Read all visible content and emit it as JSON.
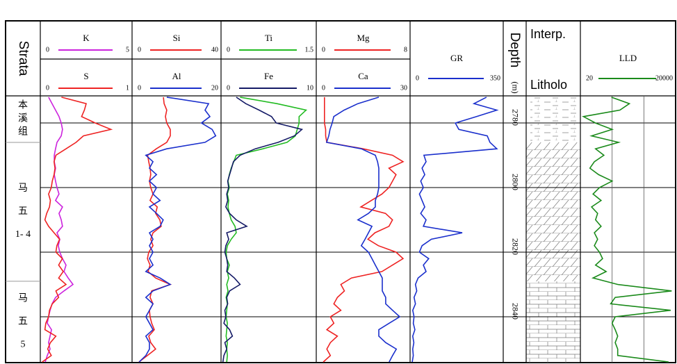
{
  "chart_data": {
    "type": "well-log",
    "strata_label": "Strata",
    "depth_label": "Depth",
    "depth_unit": "(m)",
    "litho_label": [
      "Interp.",
      "Litholo"
    ],
    "ylim": [
      2771.6,
      2854.2
    ],
    "yticks": [
      2780,
      2800,
      2820,
      2840
    ],
    "depth": [
      2772,
      2774,
      2776,
      2778,
      2780,
      2782,
      2784,
      2786,
      2788,
      2790,
      2792,
      2794,
      2796,
      2798,
      2800,
      2802,
      2804,
      2806,
      2808,
      2810,
      2812,
      2814,
      2816,
      2818,
      2820,
      2822,
      2824,
      2826,
      2828,
      2830,
      2832,
      2834,
      2836,
      2838,
      2840,
      2842,
      2844,
      2846,
      2848,
      2850,
      2852,
      2854
    ],
    "strata": [
      {
        "name": [
          "本",
          "溪",
          "组"
        ],
        "top": 2771.6,
        "base": 2786
      },
      {
        "name": [
          "马",
          "五",
          "1- 4"
        ],
        "top": 2786,
        "base": 2829
      },
      {
        "name": [
          "马",
          "五",
          "5"
        ],
        "top": 2829,
        "base": 2854.2
      }
    ],
    "tracks": [
      {
        "log": false,
        "series": [
          {
            "name": "K",
            "color": "#cc22dd",
            "xlim": [
              0,
              5
            ],
            "values": [
              0.45,
              0.64,
              0.83,
              1.02,
              1.14,
              1.21,
              1.14,
              0.91,
              0.83,
              0.76,
              0.76,
              0.83,
              0.76,
              0.83,
              0.91,
              1.02,
              0.83,
              1.21,
              1.02,
              1.14,
              1.21,
              0.91,
              1.06,
              0.98,
              1.06,
              1.21,
              1.4,
              1.29,
              1.52,
              1.78,
              1.29,
              0.83,
              0.64,
              0.53,
              0.45,
              0.38,
              0.61,
              0.53,
              0.45,
              0.53,
              0.38,
              0.27
            ]
          },
          {
            "name": "S",
            "color": "#ee2222",
            "xlim": [
              0,
              1
            ],
            "values": [
              0.23,
              0.5,
              0.48,
              0.45,
              0.6,
              0.77,
              0.47,
              0.39,
              0.28,
              0.17,
              0.15,
              0.16,
              0.15,
              0.13,
              0.12,
              0.09,
              0.11,
              0.1,
              0.07,
              0.05,
              0.09,
              0.15,
              0.21,
              0.18,
              0.17,
              0.24,
              0.2,
              0.25,
              0.2,
              0.28,
              0.17,
              0.2,
              0.13,
              0.1,
              0.09,
              0.06,
              0.05,
              0.17,
              0.11,
              0.08,
              0.12,
              0.02
            ]
          }
        ]
      },
      {
        "log": false,
        "series": [
          {
            "name": "Si",
            "color": "#ee2222",
            "xlim": [
              0,
              40
            ],
            "values": [
              14.1,
              14.4,
              15.6,
              15.0,
              15.6,
              17.2,
              17.2,
              15.6,
              10.9,
              7.0,
              7.5,
              8.1,
              8.4,
              7.8,
              8.4,
              9.4,
              8.1,
              11.3,
              10.6,
              12.5,
              13.1,
              9.4,
              8.4,
              9.4,
              7.5,
              6.9,
              8.1,
              7.2,
              10.6,
              17.2,
              8.8,
              8.1,
              9.4,
              7.8,
              8.1,
              8.8,
              10.0,
              7.5,
              8.4,
              10.6,
              6.9,
              3.1
            ]
          },
          {
            "name": "Al",
            "color": "#1a2fcc",
            "xlim": [
              0,
              20
            ],
            "values": [
              7.8,
              17.2,
              16.4,
              17.5,
              15.6,
              18.0,
              18.8,
              16.4,
              7.8,
              3.1,
              4.7,
              3.9,
              5.5,
              3.9,
              5.5,
              4.7,
              6.3,
              3.9,
              5.5,
              7.0,
              6.3,
              3.9,
              4.7,
              3.9,
              4.7,
              3.9,
              4.7,
              3.1,
              6.3,
              8.6,
              4.7,
              3.1,
              4.7,
              3.9,
              3.1,
              3.9,
              4.7,
              3.1,
              3.9,
              3.9,
              3.1,
              1.6
            ]
          }
        ]
      },
      {
        "log": false,
        "series": [
          {
            "name": "Ti",
            "color": "#22bb22",
            "xlim": [
              0,
              1.5
            ],
            "values": [
              0.3,
              0.88,
              1.34,
              1.23,
              1.23,
              1.2,
              1.17,
              1.04,
              0.66,
              0.24,
              0.2,
              0.16,
              0.13,
              0.11,
              0.13,
              0.1,
              0.12,
              0.11,
              0.13,
              0.16,
              0.22,
              0.24,
              0.16,
              0.1,
              0.08,
              0.09,
              0.13,
              0.1,
              0.12,
              0.09,
              0.11,
              0.08,
              0.1,
              0.09,
              0.08,
              0.1,
              0.09,
              0.08,
              0.1,
              0.09,
              0.1,
              0.09
            ]
          },
          {
            "name": "Fe",
            "color": "#141a66",
            "xlim": [
              0,
              10
            ],
            "values": [
              1.6,
              2.6,
              4.0,
              5.3,
              5.8,
              8.5,
              7.7,
              6.0,
              3.6,
              2.0,
              1.3,
              1.1,
              0.9,
              0.7,
              0.8,
              0.6,
              0.7,
              0.5,
              0.9,
              1.6,
              2.7,
              0.6,
              0.8,
              0.5,
              0.4,
              0.6,
              0.7,
              0.6,
              1.4,
              2.0,
              0.9,
              0.6,
              0.7,
              0.4,
              0.5,
              0.3,
              0.9,
              1.2,
              0.4,
              0.6,
              0.3,
              0.2
            ]
          }
        ]
      },
      {
        "log": false,
        "series": [
          {
            "name": "Mg",
            "color": "#ee2222",
            "xlim": [
              0,
              8
            ],
            "values": [
              0.7,
              0.7,
              0.7,
              0.7,
              0.7,
              0.8,
              0.8,
              0.9,
              4.0,
              6.5,
              7.4,
              6.2,
              6.8,
              6.5,
              6.2,
              5.6,
              4.7,
              3.8,
              5.9,
              6.5,
              6.2,
              5.0,
              4.4,
              5.3,
              6.8,
              7.4,
              6.5,
              5.6,
              3.0,
              2.1,
              2.4,
              1.8,
              1.5,
              2.1,
              1.2,
              1.5,
              0.9,
              1.8,
              1.2,
              0.9,
              1.2,
              0.6
            ]
          },
          {
            "name": "Ca",
            "color": "#1a2fcc",
            "xlim": [
              0,
              30
            ],
            "values": [
              20.0,
              13.3,
              8.9,
              5.6,
              5.1,
              4.4,
              4.0,
              3.3,
              14.4,
              18.9,
              19.6,
              20.0,
              20.0,
              20.0,
              20.0,
              19.6,
              18.9,
              18.9,
              16.7,
              13.3,
              17.8,
              16.7,
              15.6,
              14.4,
              16.7,
              17.8,
              18.9,
              20.0,
              21.1,
              21.1,
              21.1,
              22.2,
              22.2,
              24.4,
              26.7,
              23.3,
              20.0,
              20.0,
              22.2,
              25.6,
              24.4,
              23.3
            ]
          }
        ]
      },
      {
        "log": false,
        "series": [
          {
            "name": "GR",
            "color": "#1a2fcc",
            "xlim": [
              0,
              350
            ],
            "values": [
              287,
              240,
              326,
              250,
              170,
              183,
              290,
              300,
              326,
              52,
              60,
              45,
              55,
              40,
              50,
              35,
              45,
              55,
              40,
              60,
              50,
              196,
              80,
              45,
              35,
              70,
              50,
              60,
              30,
              20,
              25,
              15,
              20,
              10,
              15,
              12,
              18,
              10,
              14,
              10,
              12,
              8
            ]
          }
        ]
      },
      {
        "log": true,
        "xgrid": [
          200,
          2000
        ],
        "series": [
          {
            "name": "LLD",
            "color": "#1a8a1a",
            "xlim": [
              20,
              20000
            ],
            "values": [
              190,
              700,
              350,
              25,
              60,
              200,
              45,
              320,
              60,
              110,
              55,
              40,
              75,
              200,
              80,
              50,
              90,
              45,
              70,
              60,
              90,
              55,
              70,
              55,
              80,
              100,
              60,
              130,
              50,
              300,
              15000,
              250,
              180,
              14000,
              250,
              200,
              250,
              300,
              250,
              300,
              300,
              12000
            ]
          }
        ]
      }
    ]
  }
}
